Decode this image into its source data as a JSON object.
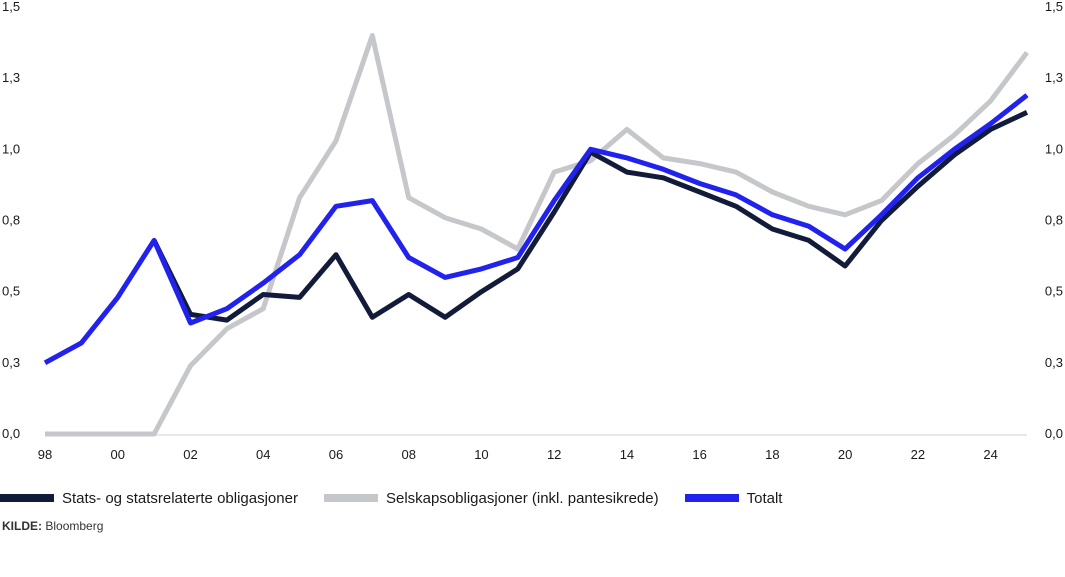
{
  "chart_data": {
    "type": "line",
    "x": [
      "98",
      "99",
      "00",
      "01",
      "02",
      "03",
      "04",
      "05",
      "06",
      "07",
      "08",
      "09",
      "10",
      "11",
      "12",
      "13",
      "14",
      "15",
      "16",
      "17",
      "18",
      "19",
      "20",
      "21",
      "22",
      "23",
      "24",
      "25"
    ],
    "x_tick_labels": [
      "98",
      "00",
      "02",
      "04",
      "06",
      "08",
      "10",
      "12",
      "14",
      "16",
      "18",
      "20",
      "22",
      "24"
    ],
    "y_tick_labels": [
      "0,0",
      "0,3",
      "0,5",
      "0,8",
      "1,0",
      "1,3",
      "1,5"
    ],
    "ylim": [
      0,
      1.5
    ],
    "grid": false,
    "legend_position": "bottom",
    "series": [
      {
        "name": "Stats- og statsrelaterte obligasjoner",
        "color": "#121b3a",
        "values": [
          null,
          null,
          null,
          0.68,
          0.42,
          0.4,
          0.49,
          0.48,
          0.63,
          0.41,
          0.49,
          0.41,
          0.5,
          0.58,
          0.78,
          0.99,
          0.92,
          0.9,
          0.85,
          0.8,
          0.72,
          0.68,
          0.59,
          0.75,
          0.87,
          0.98,
          1.07,
          1.13
        ]
      },
      {
        "name": "Selskapsobligasjoner (inkl. pantesikrede)",
        "color": "#c5c7ca",
        "values": [
          0.0,
          0.0,
          0.0,
          0.0,
          0.24,
          0.37,
          0.44,
          0.83,
          1.03,
          1.4,
          0.83,
          0.76,
          0.72,
          0.65,
          0.92,
          0.96,
          1.07,
          0.97,
          0.95,
          0.92,
          0.85,
          0.8,
          0.77,
          0.82,
          0.95,
          1.05,
          1.17,
          1.34
        ]
      },
      {
        "name": "Totalt",
        "color": "#2222ee",
        "values": [
          0.25,
          0.32,
          0.48,
          0.68,
          0.39,
          0.44,
          0.53,
          0.63,
          0.8,
          0.82,
          0.62,
          0.55,
          0.58,
          0.62,
          0.82,
          1.0,
          0.97,
          0.93,
          0.88,
          0.84,
          0.77,
          0.73,
          0.65,
          0.77,
          0.9,
          1.0,
          1.09,
          1.19
        ]
      }
    ]
  },
  "source": {
    "label": "KILDE:",
    "text": "Bloomberg"
  }
}
